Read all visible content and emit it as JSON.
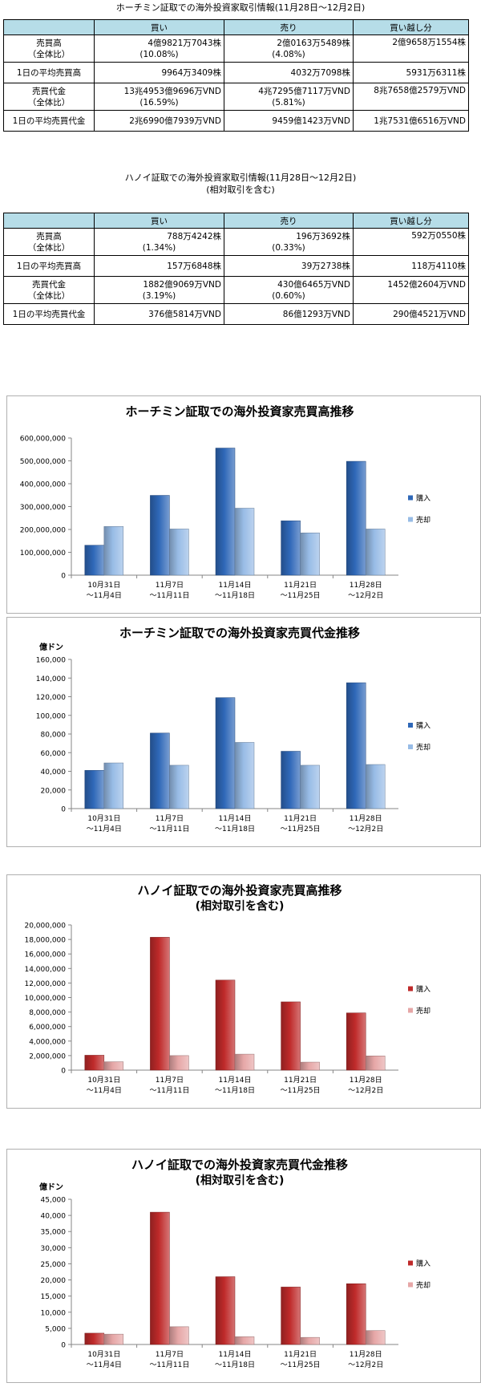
{
  "hcm_table": {
    "title": "ホーチミン証取での海外投資家取引情報(11月28日～12月2日)",
    "headers": [
      "",
      "買い",
      "売り",
      "買い越し分"
    ],
    "rows": [
      {
        "label": "売買高",
        "label2": "（全体比）",
        "buy": "4億9821万7043株",
        "buy2": "(10.08%)",
        "sell": "2億0163万5489株",
        "sell2": "(4.08%)",
        "net": "2億9658万1554株"
      },
      {
        "label": "1日の平均売買高",
        "label2": "",
        "buy": "9964万3409株",
        "buy2": "",
        "sell": "4032万7098株",
        "sell2": "",
        "net": "5931万6311株"
      },
      {
        "label": "売買代金",
        "label2": "（全体比）",
        "buy": "13兆4953億9696万VND",
        "buy2": "(16.59%)",
        "sell": "4兆7295億7117万VND",
        "sell2": "(5.81%)",
        "net": "8兆7658億2579万VND"
      },
      {
        "label": "1日の平均売買代金",
        "label2": "",
        "buy": "2兆6990億7939万VND",
        "buy2": "",
        "sell": "9459億1423万VND",
        "sell2": "",
        "net": "1兆7531億6516万VND"
      }
    ]
  },
  "hanoi_table": {
    "title": "ハノイ証取での海外投資家取引情報(11月28日～12月2日)",
    "subtitle": "(相対取引を含む)",
    "headers": [
      "",
      "買い",
      "売り",
      "買い越し分"
    ],
    "rows": [
      {
        "label": "売買高",
        "label2": "（全体比）",
        "buy": "788万4242株",
        "buy2": "(1.34%)",
        "sell": "196万3692株",
        "sell2": "(0.33%)",
        "net": "592万0550株"
      },
      {
        "label": "1日の平均売買高",
        "label2": "",
        "buy": "157万6848株",
        "buy2": "",
        "sell": "39万2738株",
        "sell2": "",
        "net": "118万4110株"
      },
      {
        "label": "売買代金",
        "label2": "（全体比）",
        "buy": "1882億9069万VND",
        "buy2": "(3.19%)",
        "sell": "430億6465万VND",
        "sell2": "(0.60%)",
        "net": "1452億2604万VND"
      },
      {
        "label": "1日の平均売買代金",
        "label2": "",
        "buy": "376億5814万VND",
        "buy2": "",
        "sell": "86億1293万VND",
        "sell2": "",
        "net": "290億4521万VND"
      }
    ]
  },
  "chart_data": [
    {
      "type": "bar",
      "title": "ホーチミン証取での海外投資家売買高推移",
      "subtitle": "",
      "ylabel": "",
      "categories": [
        [
          "10月31日",
          "～11月4日"
        ],
        [
          "11月7日",
          "～11月11日"
        ],
        [
          "11月14日",
          "～11月18日"
        ],
        [
          "11月21日",
          "～11月25日"
        ],
        [
          "11月28日",
          "～12月2日"
        ]
      ],
      "series": [
        {
          "name": "購入",
          "values": [
            131000000,
            349000000,
            556000000,
            238000000,
            498000000
          ],
          "color": "#2f68b8"
        },
        {
          "name": "売却",
          "values": [
            213000000,
            202000000,
            293000000,
            185000000,
            202000000
          ],
          "color": "#98bce6"
        }
      ],
      "ylim": [
        0,
        600000000
      ],
      "yticks": [
        0,
        100000000,
        200000000,
        300000000,
        400000000,
        500000000,
        600000000
      ],
      "ytick_labels": [
        "0",
        "100,000,000",
        "200,000,000",
        "300,000,000",
        "400,000,000",
        "500,000,000",
        "600,000,000"
      ],
      "legend": "right"
    },
    {
      "type": "bar",
      "title": "ホーチミン証取での海外投資家売買代金推移",
      "subtitle": "",
      "ylabel": "億ドン",
      "categories": [
        [
          "10月31日",
          "～11月4日"
        ],
        [
          "11月7日",
          "～11月11日"
        ],
        [
          "11月14日",
          "～11月18日"
        ],
        [
          "11月21日",
          "～11月25日"
        ],
        [
          "11月28日",
          "～12月2日"
        ]
      ],
      "series": [
        {
          "name": "購入",
          "values": [
            41000,
            81000,
            119000,
            61500,
            135000
          ],
          "color": "#2f68b8"
        },
        {
          "name": "売却",
          "values": [
            49000,
            46500,
            71000,
            46500,
            47300
          ],
          "color": "#98bce6"
        }
      ],
      "ylim": [
        0,
        160000
      ],
      "yticks": [
        0,
        20000,
        40000,
        60000,
        80000,
        100000,
        120000,
        140000,
        160000
      ],
      "ytick_labels": [
        "0",
        "20,000",
        "40,000",
        "60,000",
        "80,000",
        "100,000",
        "120,000",
        "140,000",
        "160,000"
      ],
      "legend": "right"
    },
    {
      "type": "bar",
      "title": "ハノイ証取での海外投資家売買高推移",
      "subtitle": "(相対取引を含む)",
      "ylabel": "",
      "categories": [
        [
          "10月31日",
          "～11月4日"
        ],
        [
          "11月7日",
          "～11月11日"
        ],
        [
          "11月14日",
          "～11月18日"
        ],
        [
          "11月21日",
          "～11月25日"
        ],
        [
          "11月28日",
          "～12月2日"
        ]
      ],
      "series": [
        {
          "name": "購入",
          "values": [
            2050000,
            18300000,
            12400000,
            9400000,
            7880000
          ],
          "color": "#bf2a2a"
        },
        {
          "name": "売却",
          "values": [
            1150000,
            2000000,
            2200000,
            1100000,
            1960000
          ],
          "color": "#e6a7a7"
        }
      ],
      "ylim": [
        0,
        20000000
      ],
      "yticks": [
        0,
        2000000,
        4000000,
        6000000,
        8000000,
        10000000,
        12000000,
        14000000,
        16000000,
        18000000,
        20000000
      ],
      "ytick_labels": [
        "0",
        "2,000,000",
        "4,000,000",
        "6,000,000",
        "8,000,000",
        "10,000,000",
        "12,000,000",
        "14,000,000",
        "16,000,000",
        "18,000,000",
        "20,000,000"
      ],
      "legend": "right"
    },
    {
      "type": "bar",
      "title": "ハノイ証取での海外投資家売買代金推移",
      "subtitle": "(相対取引を含む)",
      "ylabel": "億ドン",
      "categories": [
        [
          "10月31日",
          "～11月4日"
        ],
        [
          "11月7日",
          "～11月11日"
        ],
        [
          "11月14日",
          "～11月18日"
        ],
        [
          "11月21日",
          "～11月25日"
        ],
        [
          "11月28日",
          "～12月2日"
        ]
      ],
      "series": [
        {
          "name": "購入",
          "values": [
            3500,
            41000,
            21000,
            17800,
            18830
          ],
          "color": "#bf2a2a"
        },
        {
          "name": "売却",
          "values": [
            3200,
            5500,
            2400,
            2200,
            4310
          ],
          "color": "#e6a7a7"
        }
      ],
      "ylim": [
        0,
        45000
      ],
      "yticks": [
        0,
        5000,
        10000,
        15000,
        20000,
        25000,
        30000,
        35000,
        40000,
        45000
      ],
      "ytick_labels": [
        "0",
        "5,000",
        "10,000",
        "15,000",
        "20,000",
        "25,000",
        "30,000",
        "35,000",
        "40,000",
        "45,000"
      ],
      "legend": "right"
    }
  ]
}
